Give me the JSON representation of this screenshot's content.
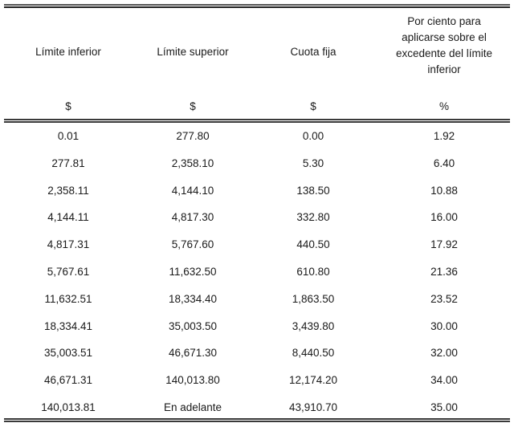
{
  "table": {
    "headers": [
      {
        "label": "Límite inferior",
        "unit": "$"
      },
      {
        "label": "Límite superior",
        "unit": "$"
      },
      {
        "label": "Cuota fija",
        "unit": "$"
      },
      {
        "label": "Por ciento para aplicarse sobre el excedente del límite inferior",
        "label_lines": [
          "Por ciento para",
          "aplicarse sobre el",
          "excedente del límite",
          "inferior"
        ],
        "unit": "%"
      }
    ],
    "rows": [
      [
        "0.01",
        "277.80",
        "0.00",
        "1.92"
      ],
      [
        "277.81",
        "2,358.10",
        "5.30",
        "6.40"
      ],
      [
        "2,358.11",
        "4,144.10",
        "138.50",
        "10.88"
      ],
      [
        "4,144.11",
        "4,817.30",
        "332.80",
        "16.00"
      ],
      [
        "4,817.31",
        "5,767.60",
        "440.50",
        "17.92"
      ],
      [
        "5,767.61",
        "11,632.50",
        "610.80",
        "21.36"
      ],
      [
        "11,632.51",
        "18,334.40",
        "1,863.50",
        "23.52"
      ],
      [
        "18,334.41",
        "35,003.50",
        "3,439.80",
        "30.00"
      ],
      [
        "35,003.51",
        "46,671.30",
        "8,440.50",
        "32.00"
      ],
      [
        "46,671.31",
        "140,013.80",
        "12,174.20",
        "34.00"
      ],
      [
        "140,013.81",
        "En adelante",
        "43,910.70",
        "35.00"
      ]
    ]
  }
}
